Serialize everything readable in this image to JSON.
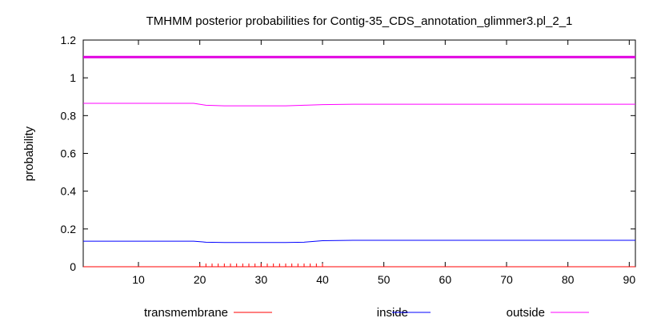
{
  "chart_data": {
    "type": "line",
    "title": "TMHMM posterior probabilities for Contig-35_CDS_annotation_glimmer3.pl_2_1",
    "xlabel": "",
    "ylabel": "probability",
    "xlim": [
      1,
      91
    ],
    "ylim": [
      0,
      1.2
    ],
    "xticks": [
      10,
      20,
      30,
      40,
      50,
      60,
      70,
      80,
      90
    ],
    "yticks": [
      0,
      0.2,
      0.4,
      0.6,
      0.8,
      1,
      1.2
    ],
    "xtick_labels": [
      "10",
      "20",
      "30",
      "40",
      "50",
      "60",
      "70",
      "80",
      "90"
    ],
    "ytick_labels": [
      "0",
      "0.2",
      "0.4",
      "0.6",
      "0.8",
      "1",
      "1.2"
    ],
    "legend_position": "bottom",
    "grid": false,
    "reference_line": {
      "y": 1.11,
      "color": "#e000e0"
    },
    "transmembrane_ticks": {
      "x_start": 20,
      "x_end": 40,
      "count": 21,
      "color": "#ff0000"
    },
    "series": [
      {
        "name": "transmembrane",
        "color": "#ff0000",
        "points": [
          [
            1,
            0
          ],
          [
            91,
            0
          ]
        ]
      },
      {
        "name": "inside",
        "color": "#0000ff",
        "points": [
          [
            1,
            0.135
          ],
          [
            19,
            0.135
          ],
          [
            21,
            0.13
          ],
          [
            24,
            0.128
          ],
          [
            34,
            0.128
          ],
          [
            37,
            0.13
          ],
          [
            40,
            0.138
          ],
          [
            45,
            0.14
          ],
          [
            58,
            0.14
          ],
          [
            91,
            0.14
          ]
        ]
      },
      {
        "name": "outside",
        "color": "#ff00ff",
        "points": [
          [
            1,
            0.865
          ],
          [
            19,
            0.865
          ],
          [
            21,
            0.855
          ],
          [
            24,
            0.852
          ],
          [
            34,
            0.852
          ],
          [
            37,
            0.855
          ],
          [
            40,
            0.858
          ],
          [
            45,
            0.86
          ],
          [
            58,
            0.86
          ],
          [
            91,
            0.86
          ]
        ]
      }
    ]
  }
}
